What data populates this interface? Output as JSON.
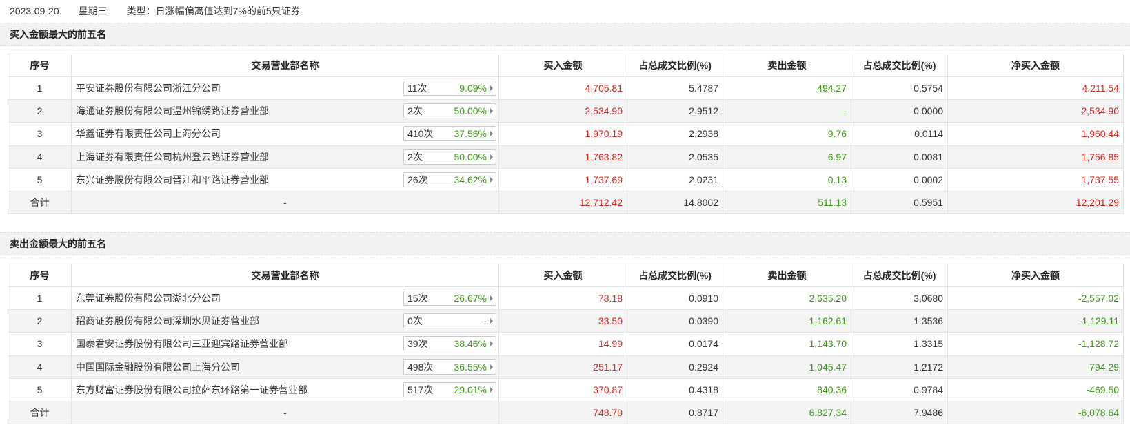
{
  "header": {
    "date": "2023-09-20",
    "weekday": "星期三",
    "type_label": "类型：日涨幅偏离值达到7%的前5只证券"
  },
  "columns": {
    "idx": "序号",
    "name": "交易营业部名称",
    "buy": "买入金额",
    "buy_ratio": "占总成交比例(%)",
    "sell": "卖出金额",
    "sell_ratio": "占总成交比例(%)",
    "net": "净买入金额"
  },
  "buy_section": {
    "title": "买入金额最大的前五名",
    "rows": [
      {
        "idx": "1",
        "name": "平安证券股份有限公司浙江分公司",
        "count": "11次",
        "rate": "9.09%",
        "buy": "4,705.81",
        "buy_ratio": "5.4787",
        "sell": "494.27",
        "sell_ratio": "0.5754",
        "net": "4,211.54"
      },
      {
        "idx": "2",
        "name": "海通证券股份有限公司温州锦绣路证券营业部",
        "count": "2次",
        "rate": "50.00%",
        "buy": "2,534.90",
        "buy_ratio": "2.9512",
        "sell": "-",
        "sell_ratio": "0.0000",
        "net": "2,534.90"
      },
      {
        "idx": "3",
        "name": "华鑫证券有限责任公司上海分公司",
        "count": "410次",
        "rate": "37.56%",
        "buy": "1,970.19",
        "buy_ratio": "2.2938",
        "sell": "9.76",
        "sell_ratio": "0.0114",
        "net": "1,960.44"
      },
      {
        "idx": "4",
        "name": "上海证券有限责任公司杭州登云路证券营业部",
        "count": "2次",
        "rate": "50.00%",
        "buy": "1,763.82",
        "buy_ratio": "2.0535",
        "sell": "6.97",
        "sell_ratio": "0.0081",
        "net": "1,756.85"
      },
      {
        "idx": "5",
        "name": "东兴证券股份有限公司晋江和平路证券营业部",
        "count": "26次",
        "rate": "34.62%",
        "buy": "1,737.69",
        "buy_ratio": "2.0231",
        "sell": "0.13",
        "sell_ratio": "0.0002",
        "net": "1,737.55"
      }
    ],
    "total": {
      "label": "合计",
      "name": "-",
      "buy": "12,712.42",
      "buy_ratio": "14.8002",
      "sell": "511.13",
      "sell_ratio": "0.5951",
      "net": "12,201.29"
    }
  },
  "sell_section": {
    "title": "卖出金额最大的前五名",
    "rows": [
      {
        "idx": "1",
        "name": "东莞证券股份有限公司湖北分公司",
        "count": "15次",
        "rate": "26.67%",
        "buy": "78.18",
        "buy_ratio": "0.0910",
        "sell": "2,635.20",
        "sell_ratio": "3.0680",
        "net": "-2,557.02"
      },
      {
        "idx": "2",
        "name": "招商证券股份有限公司深圳水贝证券营业部",
        "count": "0次",
        "rate": "-",
        "buy": "33.50",
        "buy_ratio": "0.0390",
        "sell": "1,162.61",
        "sell_ratio": "1.3536",
        "net": "-1,129.11"
      },
      {
        "idx": "3",
        "name": "国泰君安证券股份有限公司三亚迎宾路证券营业部",
        "count": "39次",
        "rate": "38.46%",
        "buy": "14.99",
        "buy_ratio": "0.0174",
        "sell": "1,143.70",
        "sell_ratio": "1.3315",
        "net": "-1,128.72"
      },
      {
        "idx": "4",
        "name": "中国国际金融股份有限公司上海分公司",
        "count": "498次",
        "rate": "36.55%",
        "buy": "251.17",
        "buy_ratio": "0.2924",
        "sell": "1,045.47",
        "sell_ratio": "1.2172",
        "net": "-794.29"
      },
      {
        "idx": "5",
        "name": "东方财富证券股份有限公司拉萨东环路第一证券营业部",
        "count": "517次",
        "rate": "29.01%",
        "buy": "370.87",
        "buy_ratio": "0.4318",
        "sell": "840.36",
        "sell_ratio": "0.9784",
        "net": "-469.50"
      }
    ],
    "total": {
      "label": "合计",
      "name": "-",
      "buy": "748.70",
      "buy_ratio": "0.8717",
      "sell": "6,827.34",
      "sell_ratio": "7.9486",
      "net": "-6,078.64"
    }
  },
  "colors": {
    "up": "#e2231a",
    "down": "#3c9a16",
    "header_bg": "#f2f2f2",
    "row_alt": "#f4f4f4"
  }
}
